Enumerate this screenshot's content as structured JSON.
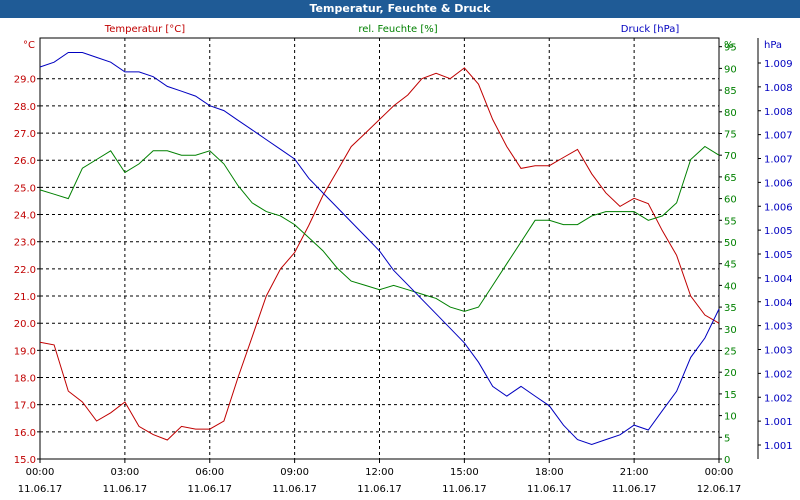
{
  "window": {
    "title": "Temperatur, Feuchte & Druck"
  },
  "chart_data": {
    "type": "line",
    "title": "Temperatur, Feuchte & Druck",
    "x_ticks": [
      {
        "time": "00:00",
        "date": "11.06.17"
      },
      {
        "time": "03:00",
        "date": "11.06.17"
      },
      {
        "time": "06:00",
        "date": "11.06.17"
      },
      {
        "time": "09:00",
        "date": "11.06.17"
      },
      {
        "time": "12:00",
        "date": "11.06.17"
      },
      {
        "time": "15:00",
        "date": "11.06.17"
      },
      {
        "time": "18:00",
        "date": "11.06.17"
      },
      {
        "time": "21:00",
        "date": "11.06.17"
      },
      {
        "time": "00:00",
        "date": "12.06.17"
      }
    ],
    "x_range_hours": [
      0,
      24
    ],
    "grid": true,
    "axes": {
      "temperature": {
        "label": "Temperatur [°C]",
        "unit": "°C",
        "side": "left",
        "color": "#c00000",
        "range": [
          15.0,
          30.5
        ],
        "ticks": [
          "15.0",
          "16.0",
          "17.0",
          "18.0",
          "19.0",
          "20.0",
          "21.0",
          "22.0",
          "23.0",
          "24.0",
          "25.0",
          "26.0",
          "27.0",
          "28.0",
          "29.0"
        ]
      },
      "humidity": {
        "label": "rel. Feuchte [%]",
        "unit": "%",
        "side": "right",
        "color": "#008000",
        "range": [
          0,
          97
        ],
        "ticks": [
          "0",
          "5",
          "10",
          "15",
          "20",
          "25",
          "30",
          "35",
          "40",
          "45",
          "50",
          "55",
          "60",
          "65",
          "70",
          "75",
          "80",
          "85",
          "90",
          "95"
        ]
      },
      "pressure": {
        "label": "Druck [hPa]",
        "unit": "hPa",
        "side": "right-outer",
        "color": "#0000c0",
        "range": [
          1000.6,
          1009.3
        ],
        "ticks": [
          "1.001",
          "1.001",
          "1.002",
          "1.002",
          "1.003",
          "1.003",
          "1.004",
          "1.004",
          "1.005",
          "1.005",
          "1.006",
          "1.006",
          "1.007",
          "1.007",
          "1.008",
          "1.008",
          "1.009"
        ]
      }
    },
    "series": [
      {
        "name": "Temperatur [°C]",
        "axis": "temperature",
        "color": "#c00000",
        "x": [
          0,
          0.5,
          1,
          1.5,
          2,
          2.5,
          3,
          3.5,
          4,
          4.5,
          5,
          5.5,
          6,
          6.5,
          7,
          7.5,
          8,
          8.5,
          9,
          9.5,
          10,
          10.5,
          11,
          11.5,
          12,
          12.5,
          13,
          13.5,
          14,
          14.5,
          15,
          15.5,
          16,
          16.5,
          17,
          17.5,
          18,
          18.5,
          19,
          19.5,
          20,
          20.5,
          21,
          21.5,
          22,
          22.5,
          23,
          23.5,
          24
        ],
        "values": [
          19.3,
          19.2,
          17.5,
          17.1,
          16.4,
          16.7,
          17.1,
          16.2,
          15.9,
          15.7,
          16.2,
          16.1,
          16.1,
          16.4,
          18.0,
          19.5,
          21.0,
          22.0,
          22.6,
          23.6,
          24.7,
          25.6,
          26.5,
          27.0,
          27.5,
          28.0,
          28.4,
          29.0,
          29.2,
          29.0,
          29.4,
          28.8,
          27.5,
          26.5,
          25.7,
          25.8,
          25.8,
          26.1,
          26.4,
          25.5,
          24.8,
          24.3,
          24.6,
          24.4,
          23.4,
          22.5,
          21.0,
          20.3,
          20.0
        ]
      },
      {
        "name": "rel. Feuchte [%]",
        "axis": "humidity",
        "color": "#008000",
        "x": [
          0,
          0.5,
          1,
          1.5,
          2,
          2.5,
          3,
          3.5,
          4,
          4.5,
          5,
          5.5,
          6,
          6.5,
          7,
          7.5,
          8,
          8.5,
          9,
          9.5,
          10,
          10.5,
          11,
          11.5,
          12,
          12.5,
          13,
          13.5,
          14,
          14.5,
          15,
          15.5,
          16,
          16.5,
          17,
          17.5,
          18,
          18.5,
          19,
          19.5,
          20,
          20.5,
          21,
          21.5,
          22,
          22.5,
          23,
          23.5,
          24
        ],
        "values": [
          62,
          61,
          60,
          67,
          69,
          71,
          66,
          68,
          71,
          71,
          70,
          70,
          71,
          68,
          63,
          59,
          57,
          56,
          54,
          51,
          48,
          44,
          41,
          40,
          39,
          40,
          39,
          38,
          37,
          35,
          34,
          35,
          40,
          45,
          50,
          55,
          55,
          54,
          54,
          56,
          57,
          57,
          57,
          55,
          56,
          59,
          69,
          72,
          70
        ]
      },
      {
        "name": "Druck [hPa]",
        "axis": "pressure",
        "color": "#0000c0",
        "x": [
          0,
          0.5,
          1,
          1.5,
          2,
          2.5,
          3,
          3.5,
          4,
          4.5,
          5,
          5.5,
          6,
          6.5,
          7,
          7.5,
          8,
          8.5,
          9,
          9.5,
          10,
          10.5,
          11,
          11.5,
          12,
          12.5,
          13,
          13.5,
          14,
          14.5,
          15,
          15.5,
          16,
          16.5,
          17,
          17.5,
          18,
          18.5,
          19,
          19.5,
          20,
          20.5,
          21,
          21.5,
          22,
          22.5,
          23,
          23.5,
          24
        ],
        "values": [
          1008.7,
          1008.8,
          1009.0,
          1009.0,
          1008.9,
          1008.8,
          1008.6,
          1008.6,
          1008.5,
          1008.3,
          1008.2,
          1008.1,
          1007.9,
          1007.8,
          1007.6,
          1007.4,
          1007.2,
          1007.0,
          1006.8,
          1006.4,
          1006.1,
          1005.8,
          1005.5,
          1005.2,
          1004.9,
          1004.5,
          1004.2,
          1003.9,
          1003.6,
          1003.3,
          1003.0,
          1002.6,
          1002.1,
          1001.9,
          1002.1,
          1001.9,
          1001.7,
          1001.3,
          1001.0,
          1000.9,
          1001.0,
          1001.1,
          1001.3,
          1001.2,
          1001.6,
          1002.0,
          1002.7,
          1003.1,
          1003.7
        ]
      }
    ]
  }
}
